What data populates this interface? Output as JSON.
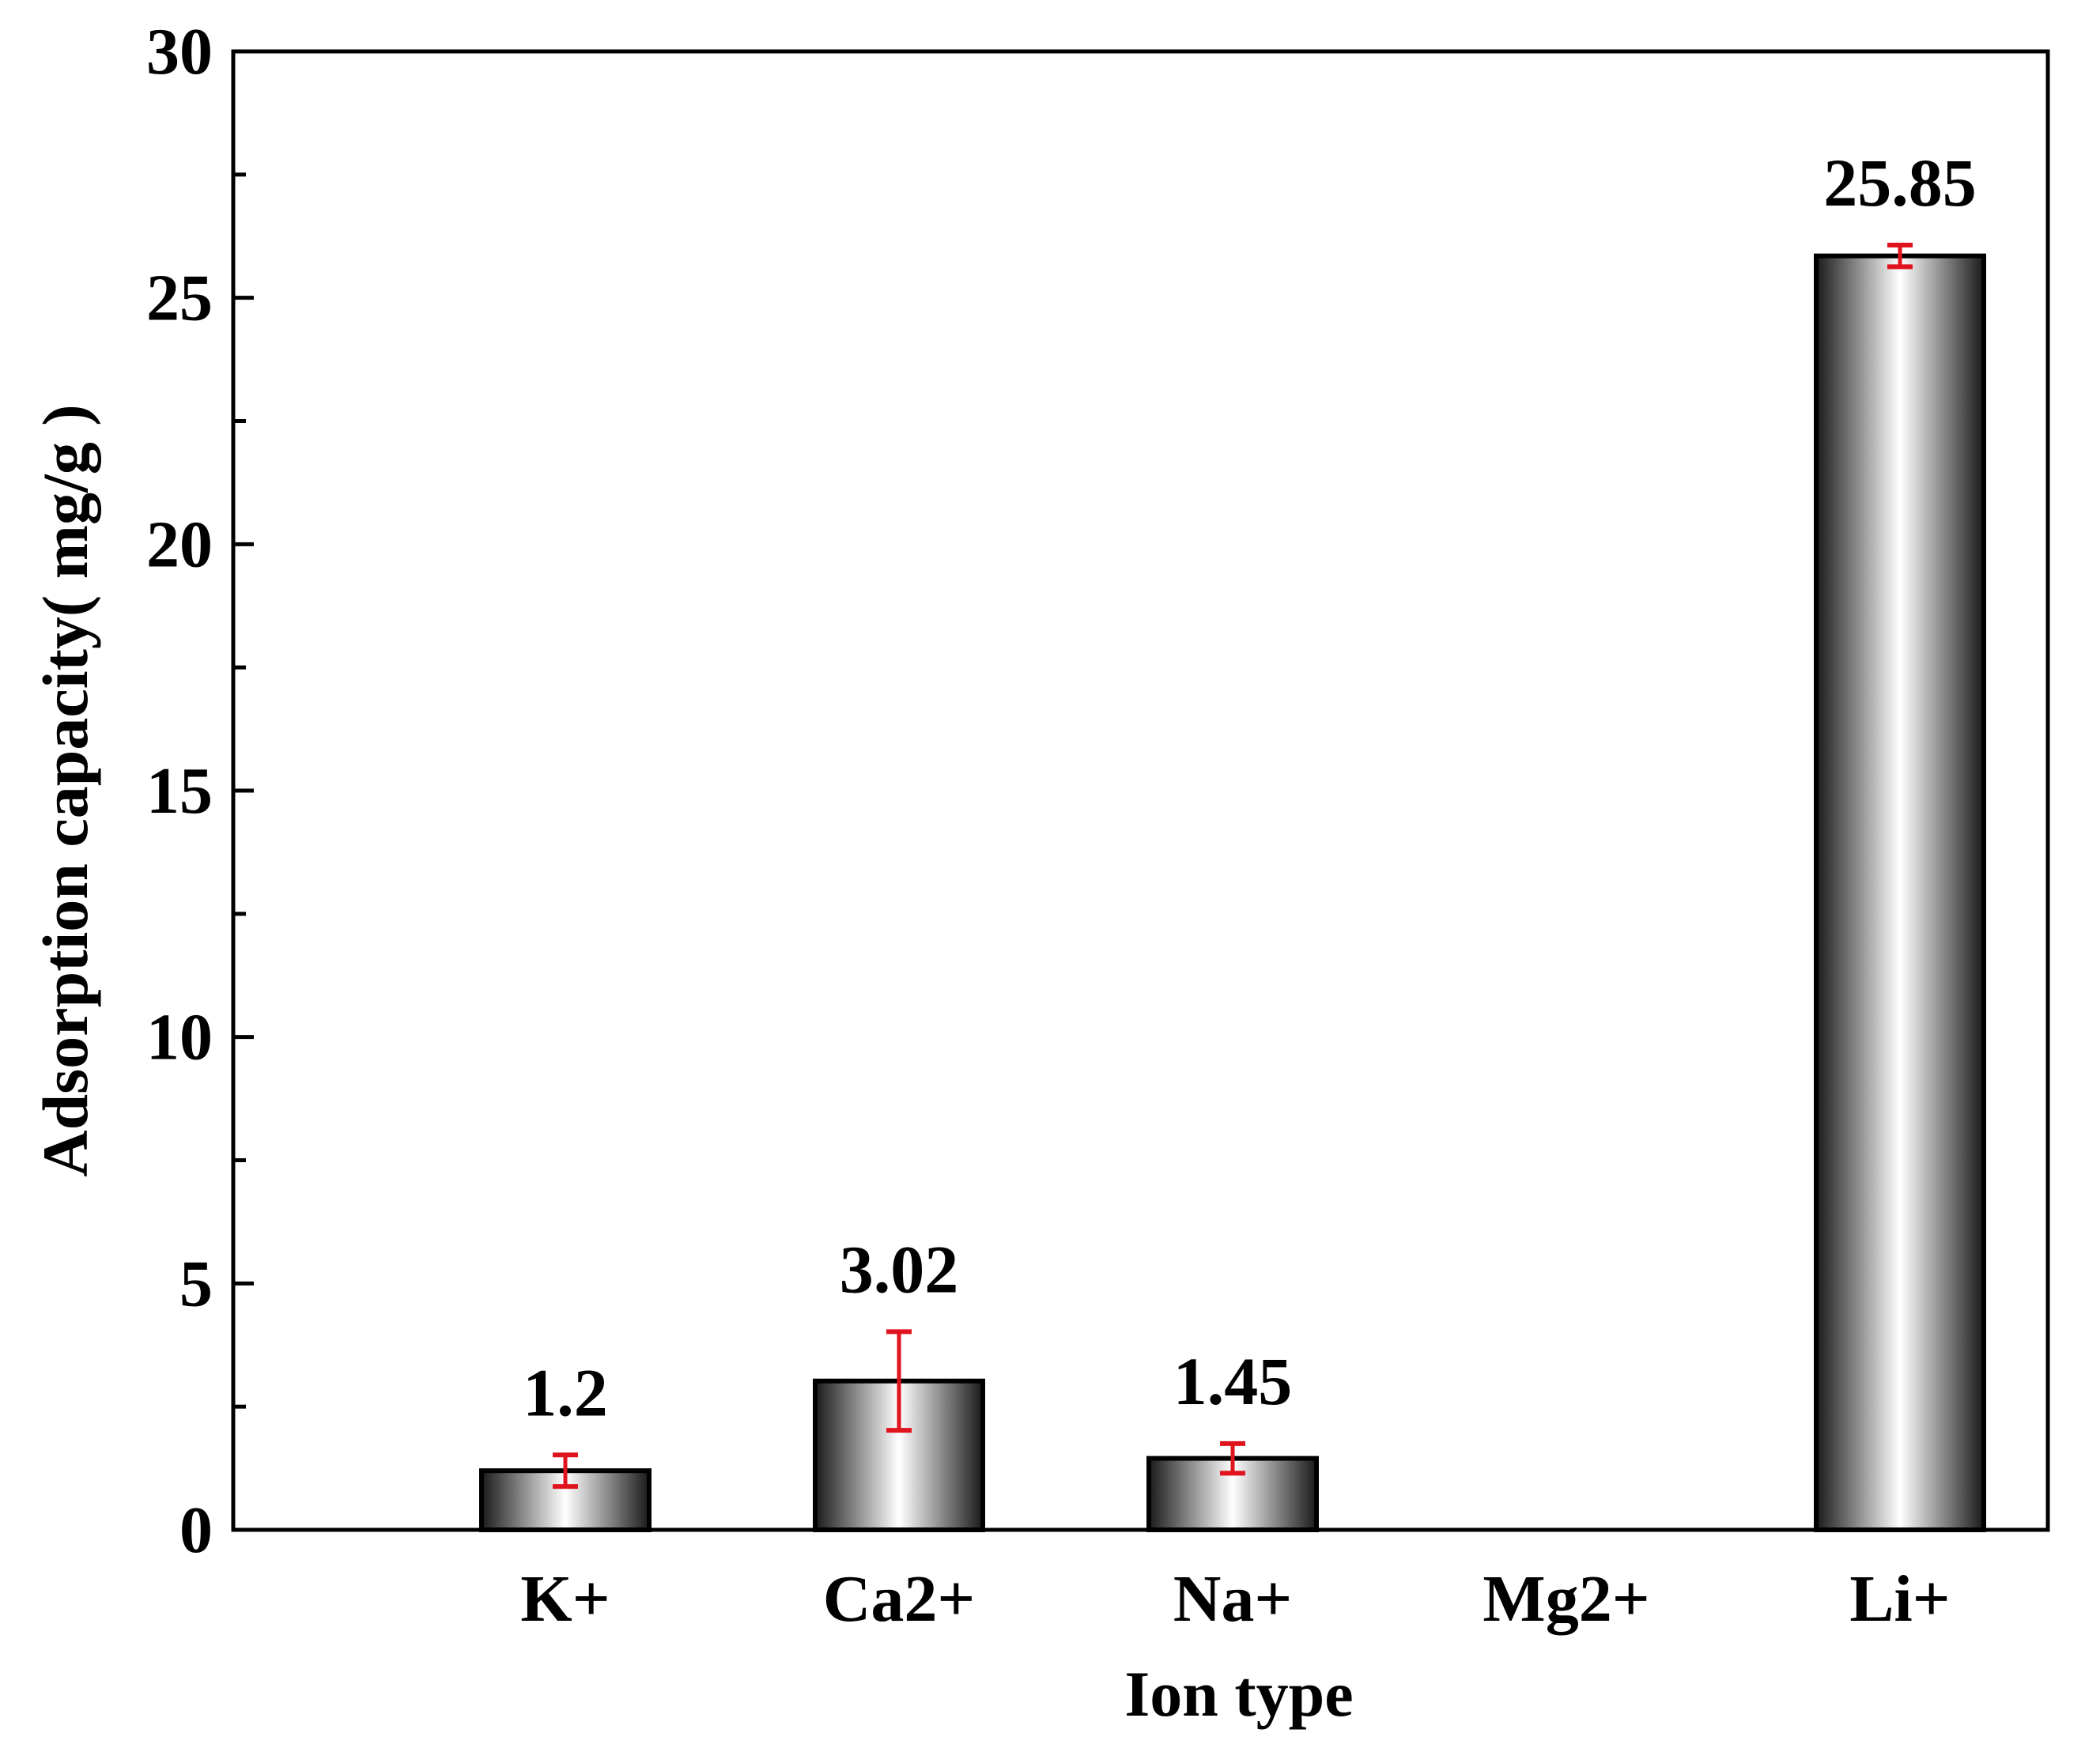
{
  "chart_data": {
    "type": "bar",
    "title": "",
    "xlabel": "Ion type",
    "ylabel": "Adsorption capacity( mg/g )",
    "ylim": [
      0,
      30
    ],
    "yticks": [
      0,
      5,
      10,
      15,
      20,
      25,
      30
    ],
    "categories": [
      "K+",
      "Ca2+",
      "Na+",
      "Mg2+",
      "Li+"
    ],
    "values": [
      1.2,
      3.02,
      1.45,
      0,
      25.85
    ],
    "error": [
      0.32,
      1.0,
      0.3,
      0,
      0.22
    ],
    "value_labels": [
      "1.2",
      "3.02",
      "1.45",
      "",
      "25.85"
    ],
    "bar_visible": [
      true,
      true,
      true,
      false,
      true
    ],
    "error_color": "#e0141e",
    "bar_edge_color": "#000000",
    "bar_gradient": [
      "#1a1a1a",
      "#ffffff",
      "#1a1a1a"
    ]
  }
}
